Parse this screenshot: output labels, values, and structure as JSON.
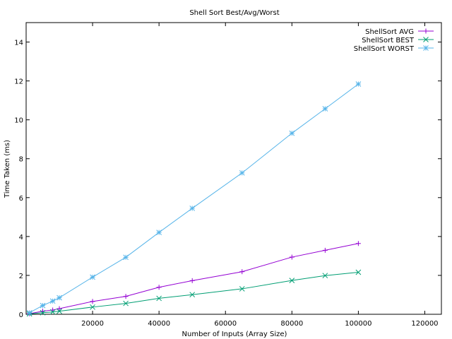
{
  "chart_data": {
    "type": "line",
    "title": "Shell Sort Best/Avg/Worst",
    "xlabel": "Number of Inputs (Array Size)",
    "ylabel": "Time Taken (ms)",
    "xlim": [
      0,
      125000
    ],
    "ylim": [
      0,
      15
    ],
    "xticks": [
      20000,
      40000,
      60000,
      80000,
      100000,
      120000
    ],
    "yticks": [
      0,
      2,
      4,
      6,
      8,
      10,
      12,
      14
    ],
    "grid": false,
    "legend_position": "top-right",
    "series": [
      {
        "name": "ShellSort AVG",
        "color": "#9400d3",
        "marker": "plus",
        "x": [
          1000,
          5000,
          8000,
          10000,
          20000,
          30000,
          40000,
          50000,
          65000,
          80000,
          90000,
          100000
        ],
        "y": [
          0.03,
          0.16,
          0.22,
          0.29,
          0.66,
          0.92,
          1.39,
          1.73,
          2.19,
          2.94,
          3.29,
          3.64
        ]
      },
      {
        "name": "ShellSort BEST",
        "color": "#009e73",
        "marker": "x",
        "x": [
          1000,
          5000,
          8000,
          10000,
          20000,
          30000,
          40000,
          50000,
          65000,
          80000,
          90000,
          100000
        ],
        "y": [
          0.02,
          0.08,
          0.12,
          0.16,
          0.37,
          0.56,
          0.82,
          1.01,
          1.31,
          1.74,
          1.99,
          2.16
        ]
      },
      {
        "name": "ShellSort WORST",
        "color": "#56b4e9",
        "marker": "star",
        "x": [
          1000,
          5000,
          8000,
          10000,
          20000,
          30000,
          40000,
          50000,
          65000,
          80000,
          90000,
          100000
        ],
        "y": [
          0.08,
          0.45,
          0.68,
          0.85,
          1.91,
          2.93,
          4.21,
          5.45,
          7.27,
          9.31,
          10.57,
          11.84
        ]
      }
    ]
  }
}
